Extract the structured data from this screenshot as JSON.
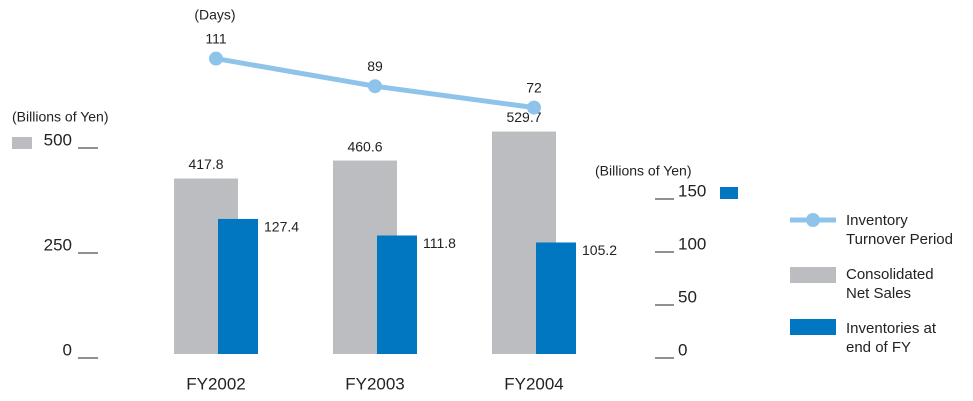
{
  "chart_data": {
    "type": "bar",
    "categories": [
      "FY2002",
      "FY2003",
      "FY2004"
    ],
    "series": [
      {
        "name": "Inventory Turnover Period",
        "type": "line",
        "color": "#8fc4ea",
        "values": [
          111,
          89,
          72
        ]
      },
      {
        "name": "Consolidated Net Sales",
        "color": "#bcbdc0",
        "values": [
          417.8,
          460.6,
          529.7
        ]
      },
      {
        "name": "Inventories at end of FY",
        "color": "#0077c0",
        "axis": "y2",
        "values": [
          127.4,
          111.8,
          105.2
        ]
      }
    ],
    "ylim": [
      0,
      500
    ],
    "yticks": [
      0,
      250,
      500
    ],
    "y_label": "(Billions of Yen)",
    "y2lim": [
      0,
      150
    ],
    "y2ticks": [
      0,
      50,
      100,
      150
    ],
    "y2_label": "(Billions of Yen)",
    "days_label": "(Days)"
  }
}
